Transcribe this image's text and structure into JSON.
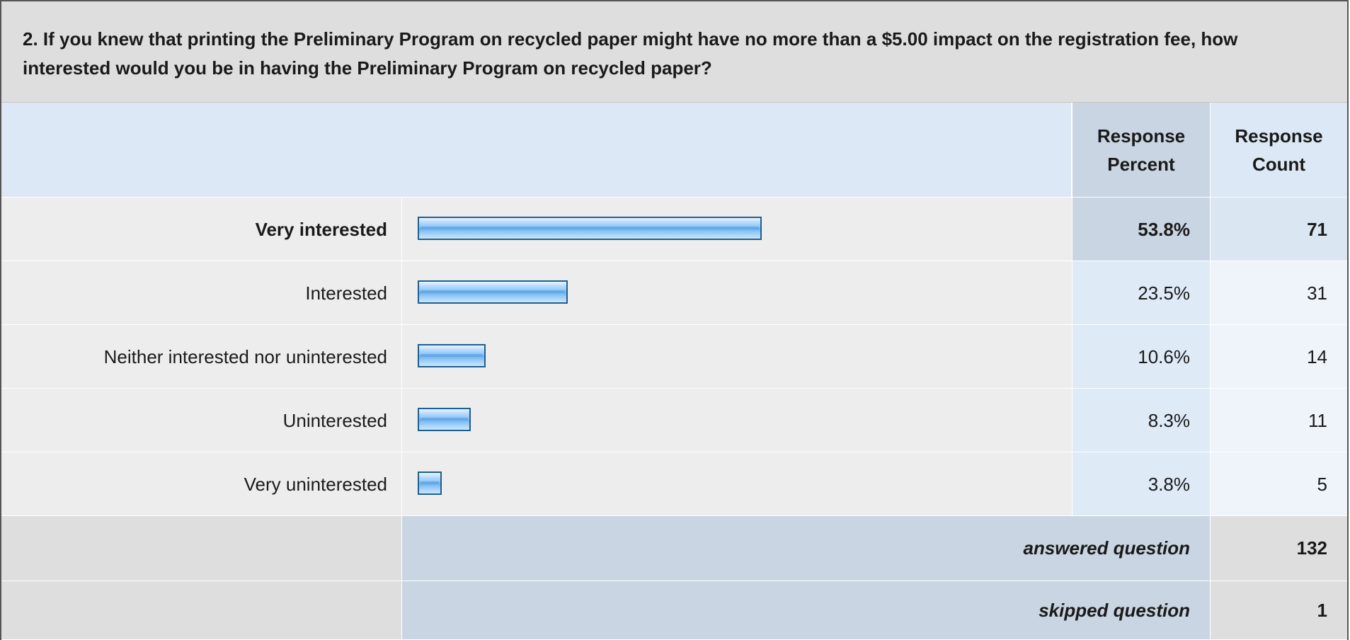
{
  "question": {
    "text": "2. If you knew that printing the Preliminary Program on recycled paper might have no more than a $5.00 impact on the registration fee, how interested would you be in having the Preliminary Program on recycled paper?"
  },
  "columns": {
    "response_percent": "Response Percent",
    "response_count": "Response Count"
  },
  "rows": [
    {
      "label": "Very interested",
      "percent_text": "53.8%",
      "count_text": "71"
    },
    {
      "label": "Interested",
      "percent_text": "23.5%",
      "count_text": "31"
    },
    {
      "label": "Neither interested nor uninterested",
      "percent_text": "10.6%",
      "count_text": "14"
    },
    {
      "label": "Uninterested",
      "percent_text": "8.3%",
      "count_text": "11"
    },
    {
      "label": "Very uninterested",
      "percent_text": "3.8%",
      "count_text": "5"
    }
  ],
  "summary": {
    "answered_label": "answered question",
    "answered_value": "132",
    "skipped_label": "skipped question",
    "skipped_value": "1"
  },
  "colors": {
    "bar_border": "#1f5f8c",
    "bar_fill": "#8dc4f5",
    "header_band": "#dce8f5",
    "question_band": "#dedede"
  },
  "chart_data": {
    "type": "bar",
    "orientation": "horizontal",
    "categories": [
      "Very interested",
      "Interested",
      "Neither interested nor uninterested",
      "Uninterested",
      "Very uninterested"
    ],
    "values": [
      53.8,
      23.5,
      10.6,
      8.3,
      3.8
    ],
    "counts": [
      71,
      31,
      14,
      11,
      5
    ],
    "xlim": [
      0,
      100
    ],
    "grid": false,
    "title": "",
    "xlabel": "",
    "ylabel": ""
  }
}
